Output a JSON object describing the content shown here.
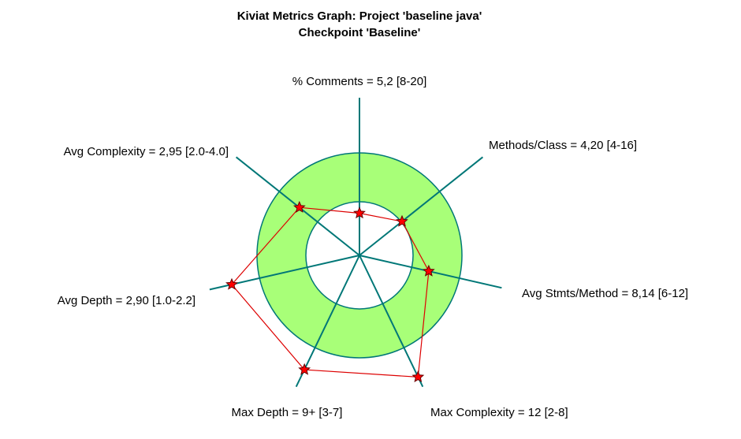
{
  "chart_data": {
    "type": "radar",
    "title": "Kiviat Metrics Graph: Project 'baseline java'",
    "subtitle": "Checkpoint 'Baseline'",
    "colors": {
      "band_fill": "#a8ff78",
      "band_stroke": "#007777",
      "axis": "#007777",
      "value_line": "#dd0000",
      "marker_fill": "#ff0000",
      "marker_stroke": "#660000"
    },
    "axes": [
      {
        "label": "% Comments = 5,2 [8-20]",
        "metric": "% Comments",
        "value": 5.2,
        "range": [
          8,
          20
        ],
        "display": "5,2"
      },
      {
        "label": "Methods/Class = 4,20 [4-16]",
        "metric": "Methods/Class",
        "value": 4.2,
        "range": [
          4,
          16
        ],
        "display": "4,20"
      },
      {
        "label": "Avg Stmts/Method = 8,14 [6-12]",
        "metric": "Avg Stmts/Method",
        "value": 8.14,
        "range": [
          6,
          12
        ],
        "display": "8,14"
      },
      {
        "label": "Max Complexity = 12 [2-8]",
        "metric": "Max Complexity",
        "value": 12,
        "range": [
          2,
          8
        ],
        "display": "12"
      },
      {
        "label": "Max Depth = 9+ [3-7]",
        "metric": "Max Depth",
        "value": 9,
        "range": [
          3,
          7
        ],
        "display": "9+"
      },
      {
        "label": "Avg Depth = 2,90 [1.0-2.2]",
        "metric": "Avg Depth",
        "value": 2.9,
        "range": [
          1.0,
          2.2
        ],
        "display": "2,90"
      },
      {
        "label": "Avg Complexity = 2,95 [2.0-4.0]",
        "metric": "Avg Complexity",
        "value": 2.95,
        "range": [
          2.0,
          4.0
        ],
        "display": "2,95"
      }
    ]
  }
}
